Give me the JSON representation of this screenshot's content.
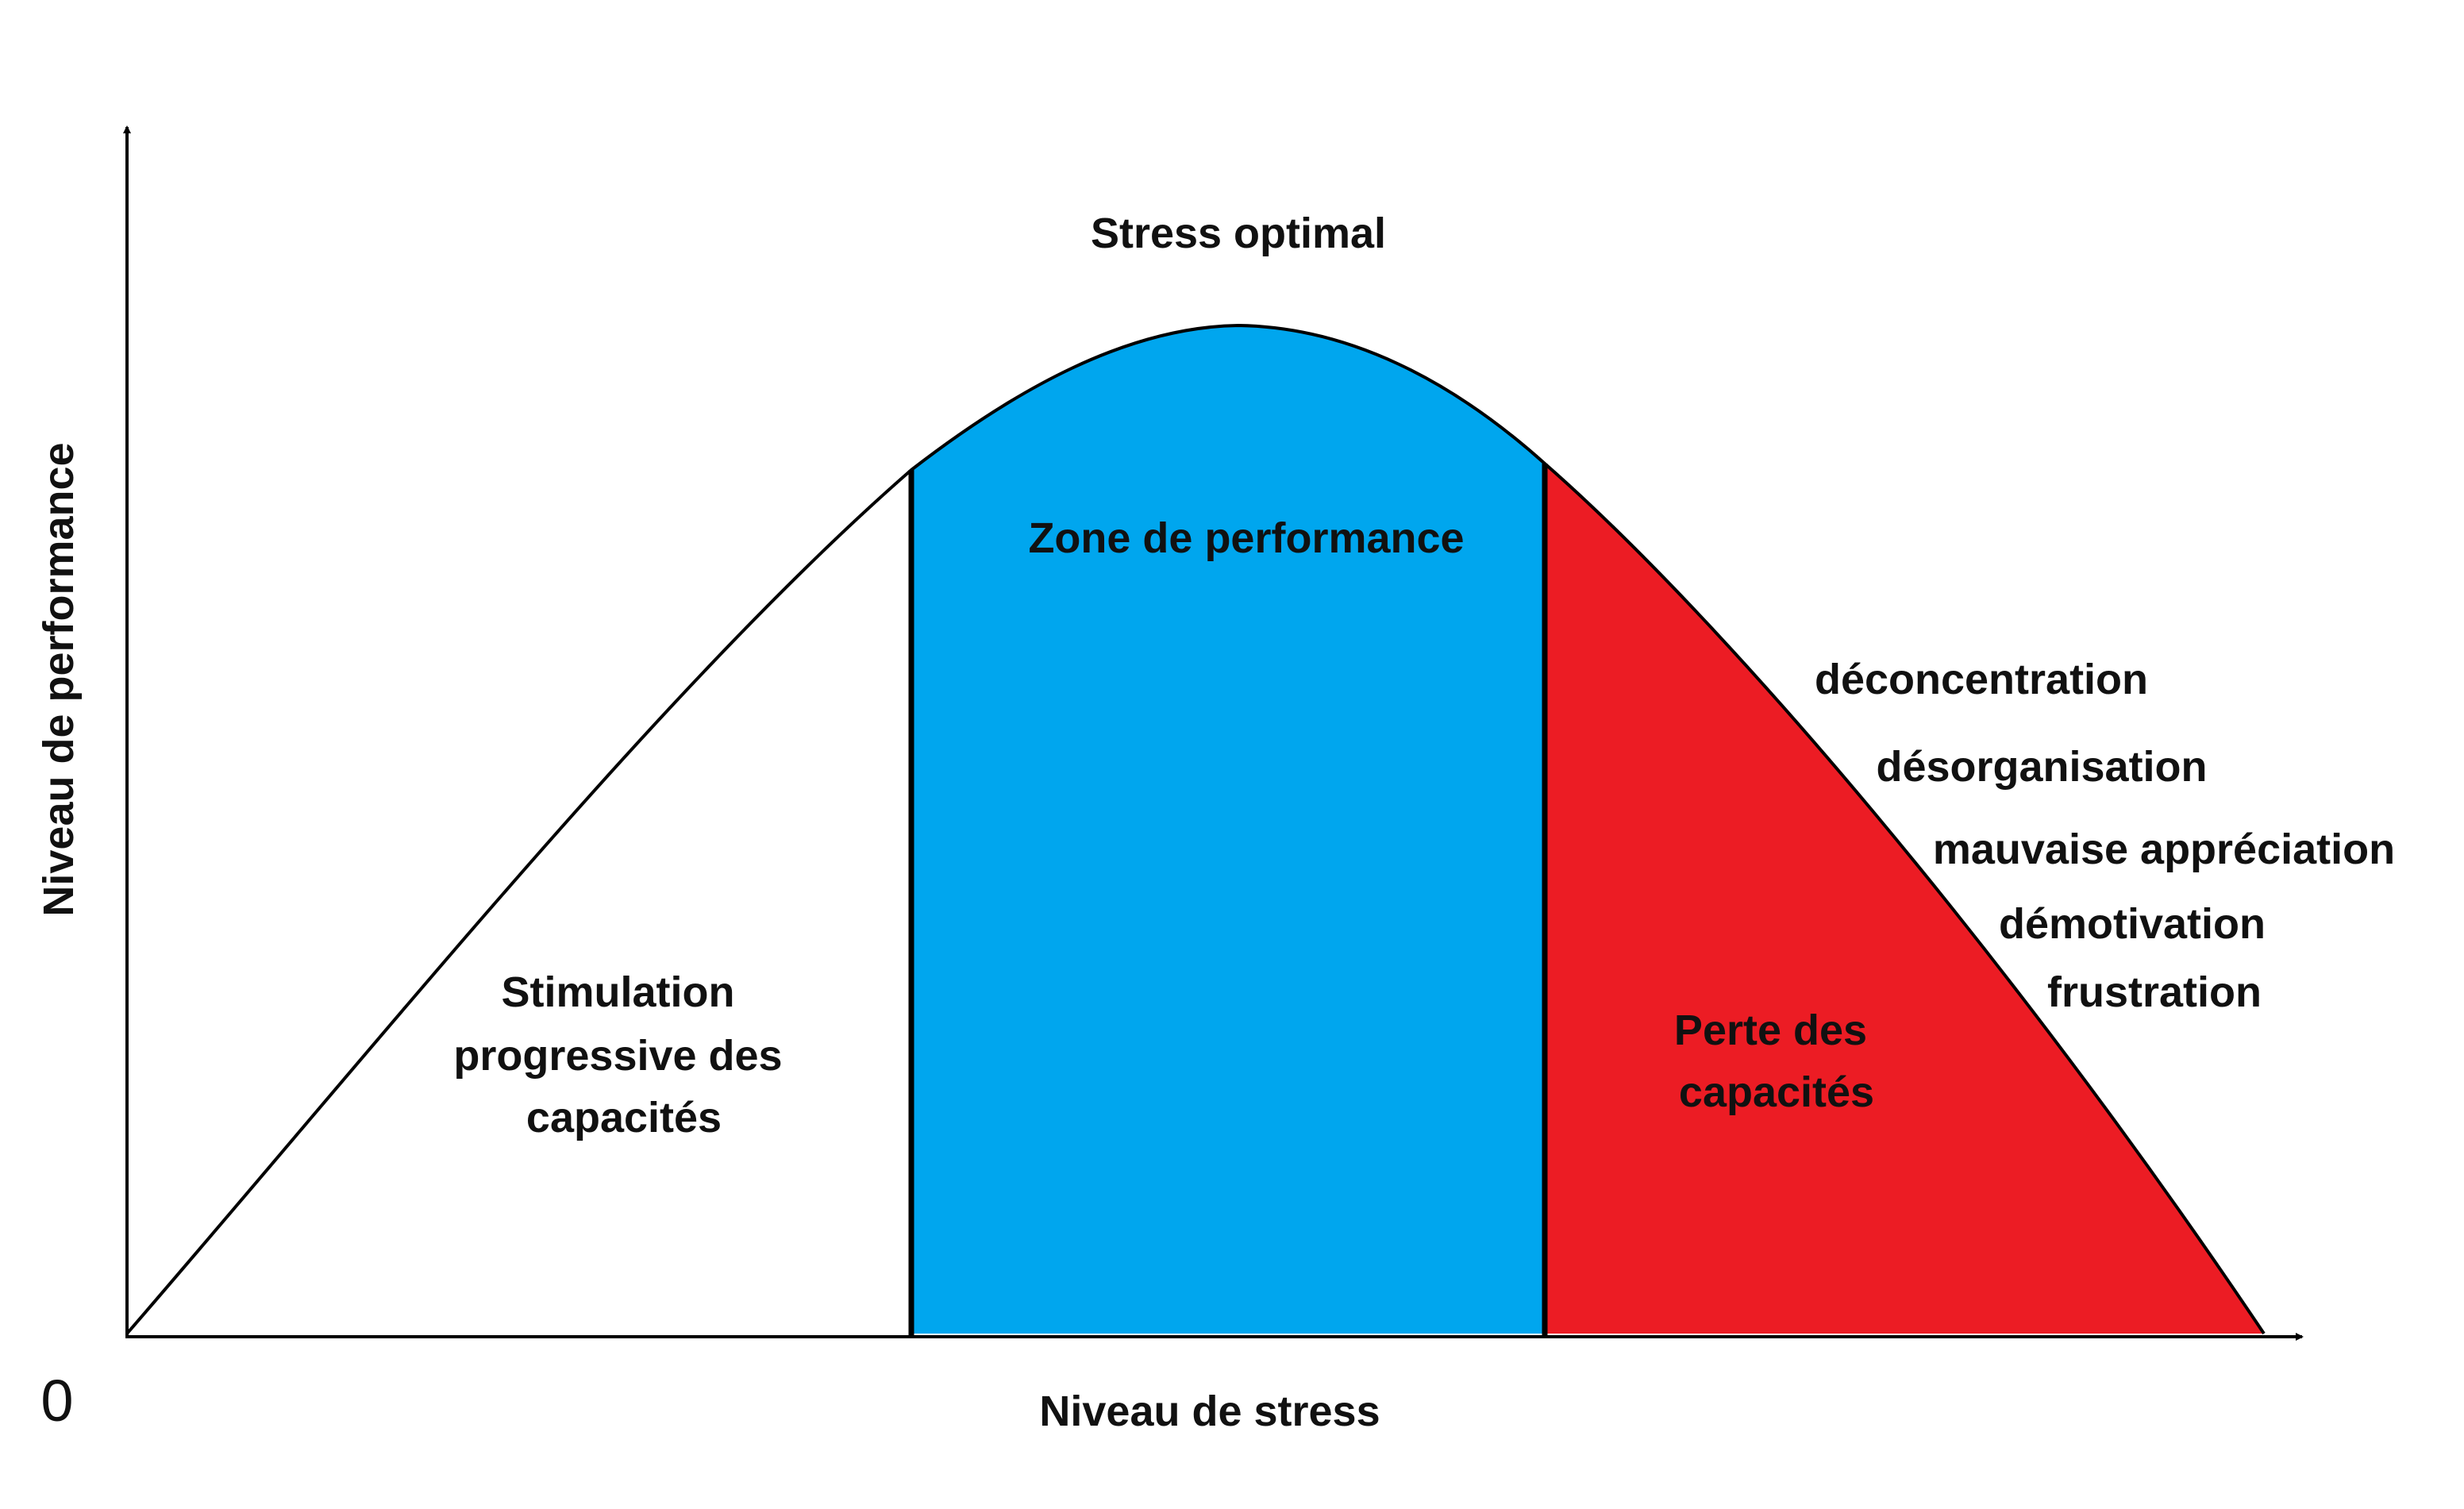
{
  "title": "Stress optimal",
  "y_axis_label": "Niveau de performance",
  "x_axis_label": "Niveau de stress",
  "origin_label": "0",
  "zones": {
    "left": {
      "lines": [
        "Stimulation",
        "progressive des",
        "capacités"
      ],
      "color": "#ffffff"
    },
    "middle": {
      "lines": [
        "Zone de performance"
      ],
      "color": "#00a6ee"
    },
    "right": {
      "lines": [
        "Perte des",
        "capacités"
      ],
      "color": "#ec1c24"
    }
  },
  "effects": [
    "déconcentration",
    "désorganisation",
    "mauvaise appréciation",
    "démotivation",
    "frustration"
  ],
  "colors": {
    "line": "#000000",
    "text": "#111111"
  }
}
